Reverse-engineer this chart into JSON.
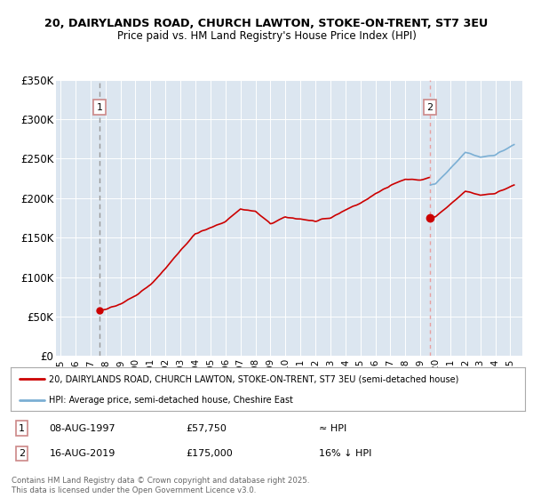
{
  "title_line1": "20, DAIRYLANDS ROAD, CHURCH LAWTON, STOKE-ON-TRENT, ST7 3EU",
  "title_line2": "Price paid vs. HM Land Registry's House Price Index (HPI)",
  "sale1_date": 1997.608,
  "sale1_price": 57750,
  "sale2_date": 2019.622,
  "sale2_price": 175000,
  "sale1_info": "08-AUG-1997",
  "sale1_amount": "£57,750",
  "sale1_hpi": "≈ HPI",
  "sale2_info": "16-AUG-2019",
  "sale2_amount": "£175,000",
  "sale2_hpi": "16% ↓ HPI",
  "legend1": "20, DAIRYLANDS ROAD, CHURCH LAWTON, STOKE-ON-TRENT, ST7 3EU (semi-detached house)",
  "legend2": "HPI: Average price, semi-detached house, Cheshire East",
  "footer": "Contains HM Land Registry data © Crown copyright and database right 2025.\nThis data is licensed under the Open Government Licence v3.0.",
  "red_color": "#cc0000",
  "blue_color": "#7bafd4",
  "vline1_color": "#999999",
  "vline2_color": "#e8a0a0",
  "box_border_color": "#cc8888",
  "background_plot": "#dce6f0",
  "background_fig": "#ffffff",
  "ylim": [
    0,
    350000
  ],
  "xlim_left": 1994.7,
  "xlim_right": 2025.8,
  "yticks": [
    0,
    50000,
    100000,
    150000,
    200000,
    250000,
    300000,
    350000
  ],
  "ytick_labels": [
    "£0",
    "£50K",
    "£100K",
    "£150K",
    "£200K",
    "£250K",
    "£300K",
    "£350K"
  ],
  "hpi_years": [
    1995.0,
    1995.083,
    1995.167,
    1995.25,
    1995.333,
    1995.417,
    1995.5,
    1995.583,
    1995.667,
    1995.75,
    1995.833,
    1995.917,
    1996.0,
    1996.083,
    1996.167,
    1996.25,
    1996.333,
    1996.417,
    1996.5,
    1996.583,
    1996.667,
    1996.75,
    1996.833,
    1996.917,
    1997.0,
    1997.083,
    1997.167,
    1997.25,
    1997.333,
    1997.417,
    1997.5,
    1997.583,
    1997.667,
    1997.75,
    1997.833,
    1997.917,
    1998.0,
    1998.083,
    1998.167,
    1998.25,
    1998.333,
    1998.417,
    1998.5,
    1998.583,
    1998.667,
    1998.75,
    1998.833,
    1998.917,
    1999.0,
    1999.083,
    1999.167,
    1999.25,
    1999.333,
    1999.417,
    1999.5,
    1999.583,
    1999.667,
    1999.75,
    1999.833,
    1999.917,
    2000.0,
    2000.083,
    2000.167,
    2000.25,
    2000.333,
    2000.417,
    2000.5,
    2000.583,
    2000.667,
    2000.75,
    2000.833,
    2000.917,
    2001.0,
    2001.083,
    2001.167,
    2001.25,
    2001.333,
    2001.417,
    2001.5,
    2001.583,
    2001.667,
    2001.75,
    2001.833,
    2001.917,
    2002.0,
    2002.083,
    2002.167,
    2002.25,
    2002.333,
    2002.417,
    2002.5,
    2002.583,
    2002.667,
    2002.75,
    2002.833,
    2002.917,
    2003.0,
    2003.083,
    2003.167,
    2003.25,
    2003.333,
    2003.417,
    2003.5,
    2003.583,
    2003.667,
    2003.75,
    2003.833,
    2003.917,
    2004.0,
    2004.083,
    2004.167,
    2004.25,
    2004.333,
    2004.417,
    2004.5,
    2004.583,
    2004.667,
    2004.75,
    2004.833,
    2004.917,
    2005.0,
    2005.083,
    2005.167,
    2005.25,
    2005.333,
    2005.417,
    2005.5,
    2005.583,
    2005.667,
    2005.75,
    2005.833,
    2005.917,
    2006.0,
    2006.083,
    2006.167,
    2006.25,
    2006.333,
    2006.417,
    2006.5,
    2006.583,
    2006.667,
    2006.75,
    2006.833,
    2006.917,
    2007.0,
    2007.083,
    2007.167,
    2007.25,
    2007.333,
    2007.417,
    2007.5,
    2007.583,
    2007.667,
    2007.75,
    2007.833,
    2007.917,
    2008.0,
    2008.083,
    2008.167,
    2008.25,
    2008.333,
    2008.417,
    2008.5,
    2008.583,
    2008.667,
    2008.75,
    2008.833,
    2008.917,
    2009.0,
    2009.083,
    2009.167,
    2009.25,
    2009.333,
    2009.417,
    2009.5,
    2009.583,
    2009.667,
    2009.75,
    2009.833,
    2009.917,
    2010.0,
    2010.083,
    2010.167,
    2010.25,
    2010.333,
    2010.417,
    2010.5,
    2010.583,
    2010.667,
    2010.75,
    2010.833,
    2010.917,
    2011.0,
    2011.083,
    2011.167,
    2011.25,
    2011.333,
    2011.417,
    2011.5,
    2011.583,
    2011.667,
    2011.75,
    2011.833,
    2011.917,
    2012.0,
    2012.083,
    2012.167,
    2012.25,
    2012.333,
    2012.417,
    2012.5,
    2012.583,
    2012.667,
    2012.75,
    2012.833,
    2012.917,
    2013.0,
    2013.083,
    2013.167,
    2013.25,
    2013.333,
    2013.417,
    2013.5,
    2013.583,
    2013.667,
    2013.75,
    2013.833,
    2013.917,
    2014.0,
    2014.083,
    2014.167,
    2014.25,
    2014.333,
    2014.417,
    2014.5,
    2014.583,
    2014.667,
    2014.75,
    2014.833,
    2014.917,
    2015.0,
    2015.083,
    2015.167,
    2015.25,
    2015.333,
    2015.417,
    2015.5,
    2015.583,
    2015.667,
    2015.75,
    2015.833,
    2015.917,
    2016.0,
    2016.083,
    2016.167,
    2016.25,
    2016.333,
    2016.417,
    2016.5,
    2016.583,
    2016.667,
    2016.75,
    2016.833,
    2016.917,
    2017.0,
    2017.083,
    2017.167,
    2017.25,
    2017.333,
    2017.417,
    2017.5,
    2017.583,
    2017.667,
    2017.75,
    2017.833,
    2017.917,
    2018.0,
    2018.083,
    2018.167,
    2018.25,
    2018.333,
    2018.417,
    2018.5,
    2018.583,
    2018.667,
    2018.75,
    2018.833,
    2018.917,
    2019.0,
    2019.083,
    2019.167,
    2019.25,
    2019.333,
    2019.417,
    2019.5,
    2019.583,
    2019.667,
    2019.75,
    2019.833,
    2019.917,
    2020.0,
    2020.083,
    2020.167,
    2020.25,
    2020.333,
    2020.417,
    2020.5,
    2020.583,
    2020.667,
    2020.75,
    2020.833,
    2020.917,
    2021.0,
    2021.083,
    2021.167,
    2021.25,
    2021.333,
    2021.417,
    2021.5,
    2021.583,
    2021.667,
    2021.75,
    2021.833,
    2021.917,
    2022.0,
    2022.083,
    2022.167,
    2022.25,
    2022.333,
    2022.417,
    2022.5,
    2022.583,
    2022.667,
    2022.75,
    2022.833,
    2022.917,
    2023.0,
    2023.083,
    2023.167,
    2023.25,
    2023.333,
    2023.417,
    2023.5,
    2023.583,
    2023.667,
    2023.75,
    2023.833,
    2023.917,
    2024.0,
    2024.083,
    2024.167,
    2024.25,
    2024.333,
    2024.417,
    2024.5,
    2024.583,
    2024.667,
    2024.75,
    2024.833,
    2024.917,
    2025.0,
    2025.083,
    2025.167,
    2025.25
  ]
}
